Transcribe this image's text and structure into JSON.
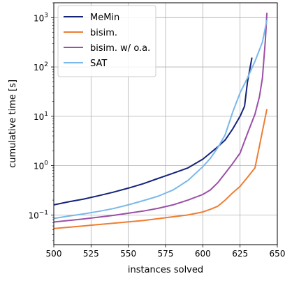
{
  "chart_data": {
    "type": "line",
    "title": "",
    "xlabel": "instances solved",
    "ylabel": "cumulative time [s]",
    "xlim": [
      500,
      650
    ],
    "ylim": [
      0.025,
      2000
    ],
    "y_scale": "log",
    "grid": true,
    "legend_position": "top-left",
    "x_ticks": [
      500,
      525,
      550,
      575,
      600,
      625,
      650
    ],
    "x_tick_labels": [
      "500",
      "525",
      "550",
      "575",
      "600",
      "625",
      "650"
    ],
    "y_ticks": [
      {
        "value": 0.1,
        "base": "10",
        "exp": "−1"
      },
      {
        "value": 1,
        "base": "10",
        "exp": "0"
      },
      {
        "value": 10,
        "base": "10",
        "exp": "1"
      },
      {
        "value": 100,
        "base": "10",
        "exp": "2"
      },
      {
        "value": 1000,
        "base": "10",
        "exp": "3"
      }
    ],
    "series": [
      {
        "name": "MeMin",
        "color": "#14237a",
        "x": [
          500,
          510,
          520,
          530,
          540,
          550,
          560,
          570,
          580,
          590,
          600,
          605,
          610,
          615,
          620,
          625,
          628,
          630,
          633
        ],
        "y": [
          0.16,
          0.185,
          0.21,
          0.245,
          0.29,
          0.35,
          0.43,
          0.55,
          0.7,
          0.9,
          1.35,
          1.8,
          2.4,
          3.3,
          5.5,
          10,
          16,
          50,
          155
        ]
      },
      {
        "name": "bisim.",
        "color": "#ef7d31",
        "x": [
          500,
          520,
          540,
          560,
          580,
          590,
          600,
          605,
          610,
          615,
          620,
          625,
          630,
          635,
          638,
          640,
          643
        ],
        "y": [
          0.053,
          0.06,
          0.068,
          0.077,
          0.092,
          0.1,
          0.115,
          0.13,
          0.15,
          0.2,
          0.28,
          0.38,
          0.58,
          0.9,
          2.5,
          5,
          14
        ]
      },
      {
        "name": "bisim. w/ o.a.",
        "color": "#9b4fa7",
        "x": [
          500,
          520,
          540,
          560,
          570,
          580,
          590,
          600,
          605,
          610,
          615,
          620,
          625,
          630,
          635,
          638,
          640,
          642,
          643
        ],
        "y": [
          0.072,
          0.083,
          0.098,
          0.12,
          0.136,
          0.16,
          0.2,
          0.26,
          0.32,
          0.45,
          0.7,
          1.1,
          1.8,
          4.5,
          11,
          25,
          60,
          350,
          1250
        ]
      },
      {
        "name": "SAT",
        "color": "#7ab8ea",
        "x": [
          500,
          510,
          520,
          530,
          540,
          550,
          560,
          570,
          580,
          590,
          600,
          605,
          610,
          615,
          620,
          625,
          630,
          635,
          640,
          643
        ],
        "y": [
          0.085,
          0.095,
          0.105,
          0.118,
          0.135,
          0.16,
          0.195,
          0.24,
          0.32,
          0.5,
          0.95,
          1.4,
          2.3,
          4.2,
          12,
          30,
          60,
          130,
          320,
          900
        ]
      }
    ]
  }
}
